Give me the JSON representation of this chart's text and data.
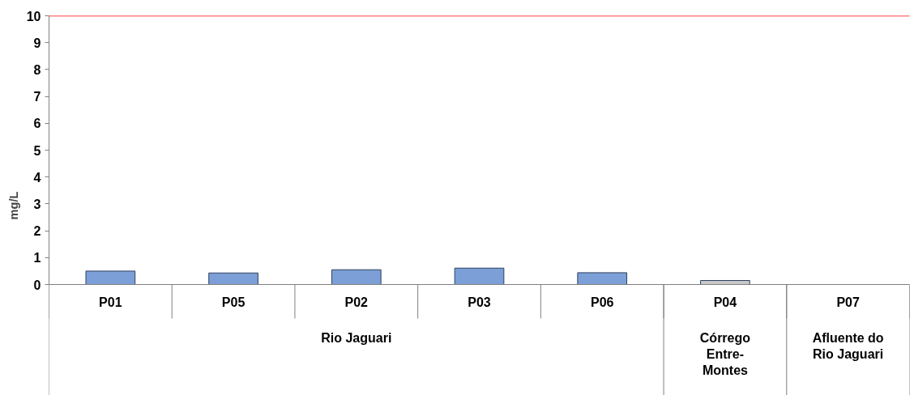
{
  "chart_data": {
    "type": "bar",
    "ylabel": "mg/L",
    "categories": [
      "P01",
      "P05",
      "P02",
      "P03",
      "P06",
      "P04",
      "P07"
    ],
    "values": [
      0.5,
      0.43,
      0.55,
      0.61,
      0.44,
      0.15,
      null
    ],
    "colors": [
      "#7b9fd6",
      "#7b9fd6",
      "#7b9fd6",
      "#7b9fd6",
      "#7b9fd6",
      "#c8c8c8",
      "#7b9fd6"
    ],
    "ylim": [
      0,
      10
    ],
    "yticks": [
      0,
      1,
      2,
      3,
      4,
      5,
      6,
      7,
      8,
      9,
      10
    ],
    "grid": false,
    "ref_lines": [
      {
        "axis": "y",
        "value": 10,
        "color": "#ff0000"
      }
    ],
    "annotations": [
      "Rio Jaguari",
      "Córrego Entre-Montes",
      "Afluente do Rio Jaguari"
    ]
  }
}
